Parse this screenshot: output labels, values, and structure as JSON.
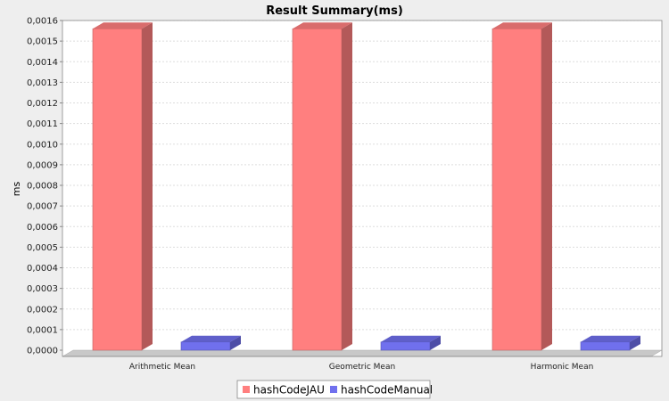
{
  "chart_data": {
    "type": "bar",
    "title": "Result Summary(ms)",
    "xlabel": "",
    "ylabel": "ms",
    "categories": [
      "Arithmetic Mean",
      "Geometric Mean",
      "Harmonic Mean"
    ],
    "series": [
      {
        "name": "hashCodeJAU",
        "values": [
          0.00156,
          0.00156,
          0.00156
        ]
      },
      {
        "name": "hashCodeManual",
        "values": [
          4e-05,
          4e-05,
          4e-05
        ]
      }
    ],
    "ylim": [
      0,
      0.0016
    ],
    "yticks": [
      "0,0000",
      "0,0001",
      "0,0002",
      "0,0003",
      "0,0004",
      "0,0005",
      "0,0006",
      "0,0007",
      "0,0008",
      "0,0009",
      "0,0010",
      "0,0011",
      "0,0012",
      "0,0013",
      "0,0014",
      "0,0015",
      "0,0016"
    ],
    "grid": true,
    "legend_position": "bottom",
    "colors": {
      "hashCodeJAU": "#ff7f7f",
      "hashCodeManual": "#7070ee",
      "plot_background": "#ffffff",
      "page_background": "#eeeeee",
      "gridline": "#dddddd"
    }
  }
}
